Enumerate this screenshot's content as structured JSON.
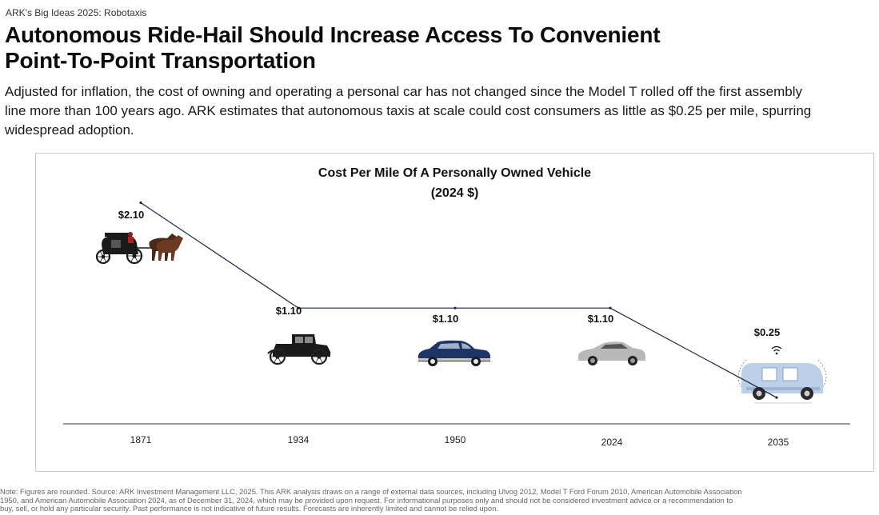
{
  "header": {
    "eyebrow": "ARK's Big Ideas 2025: Robotaxis",
    "headline_line1": "Autonomous Ride-Hail Should Increase Access To Convenient",
    "headline_line2": "Point-To-Point Transportation"
  },
  "lede": {
    "line1": "Adjusted for inflation, the cost of owning and operating a personal car has not changed since the Model T rolled off the first assembly",
    "line2": "line more than 100 years ago. ARK estimates that autonomous taxis at scale could cost consumers as little as $0.25 per mile, spurring",
    "line3": "widespread adoption."
  },
  "chart_data": {
    "type": "line",
    "title_line1": "Cost Per Mile Of A Personally Owned Vehicle",
    "title_line2": "(2024 $)",
    "categories": [
      "1871",
      "1934",
      "1950",
      "2024",
      "2035"
    ],
    "values": [
      2.1,
      1.1,
      1.1,
      1.1,
      0.25
    ],
    "data_labels": [
      "$2.10",
      "$1.10",
      "$1.10",
      "$1.10",
      "$0.25"
    ],
    "vehicle_icons": [
      "horse-carriage-icon",
      "model-t-car-icon",
      "1950s-sedan-icon",
      "modern-sedan-icon",
      "robotaxi-icon"
    ],
    "line_color": "#1c2447",
    "ylim": [
      0,
      2.4
    ],
    "grid": false,
    "legend": "none"
  },
  "footnote": {
    "line1": "Note: Figures are rounded. Source: ARK Investment Management LLC, 2025. This ARK analysis draws on a range of external data sources, including Ulvog 2012, Model T Ford Forum 2010, American Automobile Association",
    "line2": "1950, and American Automobile Association 2024, as of December 31, 2024, which may be provided upon request. For informational purposes only and should not be considered investment advice or a recommendation to",
    "line3": "buy, sell, or hold any particular security. Past performance is not indicative of future results. Forecasts are inherently limited and cannot be relied upon."
  }
}
